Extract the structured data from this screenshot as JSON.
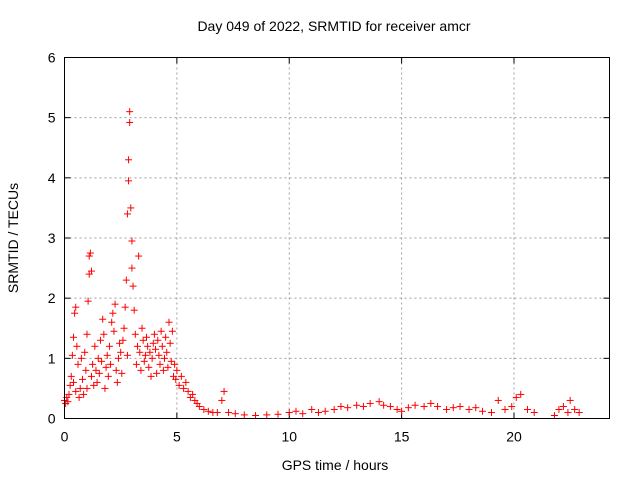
{
  "chart_data": {
    "type": "scatter",
    "title": "Day 049 of 2022, SRMTID for receiver amcr",
    "xlabel": "GPS time / hours",
    "ylabel": "SRMTID / TECUs",
    "xlim": [
      0,
      24.25
    ],
    "ylim": [
      0,
      6
    ],
    "xticks": [
      0,
      5,
      10,
      15,
      20
    ],
    "yticks": [
      0,
      1,
      2,
      3,
      4,
      5,
      6
    ],
    "grid": true,
    "marker": "+",
    "color": "#ff0000",
    "series": [
      {
        "name": "SRMTID",
        "points": [
          [
            0.0,
            0.3
          ],
          [
            0.05,
            0.25
          ],
          [
            0.1,
            0.35
          ],
          [
            0.15,
            0.28
          ],
          [
            0.2,
            0.4
          ],
          [
            0.25,
            0.55
          ],
          [
            0.3,
            0.7
          ],
          [
            0.35,
            1.05
          ],
          [
            0.4,
            0.6
          ],
          [
            0.4,
            1.35
          ],
          [
            0.45,
            1.75
          ],
          [
            0.5,
            1.85
          ],
          [
            0.5,
            0.45
          ],
          [
            0.55,
            1.2
          ],
          [
            0.6,
            0.9
          ],
          [
            0.65,
            0.35
          ],
          [
            0.7,
            0.5
          ],
          [
            0.75,
            1.0
          ],
          [
            0.8,
            0.65
          ],
          [
            0.85,
            0.4
          ],
          [
            0.9,
            1.1
          ],
          [
            0.95,
            0.8
          ],
          [
            1.0,
            1.4
          ],
          [
            1.0,
            0.5
          ],
          [
            1.05,
            1.95
          ],
          [
            1.1,
            2.4
          ],
          [
            1.1,
            2.7
          ],
          [
            1.15,
            2.75
          ],
          [
            1.2,
            2.45
          ],
          [
            1.2,
            0.7
          ],
          [
            1.25,
            0.9
          ],
          [
            1.3,
            0.55
          ],
          [
            1.35,
            1.2
          ],
          [
            1.4,
            0.8
          ],
          [
            1.45,
            0.6
          ],
          [
            1.5,
            1.0
          ],
          [
            1.55,
            0.75
          ],
          [
            1.6,
            1.3
          ],
          [
            1.65,
            0.95
          ],
          [
            1.7,
            1.65
          ],
          [
            1.75,
            1.4
          ],
          [
            1.8,
            0.5
          ],
          [
            1.85,
            0.85
          ],
          [
            1.9,
            1.05
          ],
          [
            1.95,
            0.7
          ],
          [
            2.0,
            1.2
          ],
          [
            2.05,
            0.9
          ],
          [
            2.1,
            1.6
          ],
          [
            2.15,
            1.75
          ],
          [
            2.2,
            1.45
          ],
          [
            2.25,
            1.9
          ],
          [
            2.3,
            0.8
          ],
          [
            2.35,
            0.6
          ],
          [
            2.4,
            1.0
          ],
          [
            2.45,
            1.25
          ],
          [
            2.5,
            1.1
          ],
          [
            2.55,
            0.75
          ],
          [
            2.6,
            1.3
          ],
          [
            2.65,
            1.5
          ],
          [
            2.7,
            1.85
          ],
          [
            2.75,
            2.3
          ],
          [
            2.8,
            3.4
          ],
          [
            2.8,
            1.05
          ],
          [
            2.85,
            3.95
          ],
          [
            2.85,
            4.3
          ],
          [
            2.9,
            5.1
          ],
          [
            2.9,
            4.92
          ],
          [
            2.95,
            3.5
          ],
          [
            3.0,
            2.95
          ],
          [
            3.0,
            2.5
          ],
          [
            3.05,
            2.2
          ],
          [
            3.1,
            1.8
          ],
          [
            3.15,
            1.4
          ],
          [
            3.2,
            0.9
          ],
          [
            3.25,
            1.2
          ],
          [
            3.3,
            2.7
          ],
          [
            3.35,
            1.1
          ],
          [
            3.4,
            0.8
          ],
          [
            3.45,
            1.5
          ],
          [
            3.5,
            1.3
          ],
          [
            3.55,
            0.95
          ],
          [
            3.6,
            1.05
          ],
          [
            3.65,
            1.35
          ],
          [
            3.7,
            1.2
          ],
          [
            3.75,
            0.85
          ],
          [
            3.8,
            1.1
          ],
          [
            3.85,
            0.7
          ],
          [
            3.9,
            1.0
          ],
          [
            3.95,
            1.25
          ],
          [
            4.0,
            1.4
          ],
          [
            4.05,
            1.15
          ],
          [
            4.1,
            0.75
          ],
          [
            4.15,
            1.3
          ],
          [
            4.2,
            1.05
          ],
          [
            4.25,
            0.9
          ],
          [
            4.3,
            1.45
          ],
          [
            4.35,
            1.2
          ],
          [
            4.4,
            0.8
          ],
          [
            4.45,
            1.0
          ],
          [
            4.5,
            1.35
          ],
          [
            4.55,
            1.1
          ],
          [
            4.6,
            0.85
          ],
          [
            4.65,
            1.6
          ],
          [
            4.7,
            1.25
          ],
          [
            4.75,
            0.95
          ],
          [
            4.8,
            1.45
          ],
          [
            4.85,
            0.7
          ],
          [
            4.9,
            0.9
          ],
          [
            4.95,
            0.65
          ],
          [
            5.0,
            0.8
          ],
          [
            5.1,
            0.55
          ],
          [
            5.2,
            0.7
          ],
          [
            5.3,
            0.5
          ],
          [
            5.4,
            0.6
          ],
          [
            5.5,
            0.45
          ],
          [
            5.6,
            0.35
          ],
          [
            5.7,
            0.4
          ],
          [
            5.8,
            0.3
          ],
          [
            5.9,
            0.25
          ],
          [
            6.0,
            0.2
          ],
          [
            6.2,
            0.15
          ],
          [
            6.4,
            0.12
          ],
          [
            6.6,
            0.1
          ],
          [
            6.8,
            0.1
          ],
          [
            7.0,
            0.3
          ],
          [
            7.1,
            0.45
          ],
          [
            7.3,
            0.1
          ],
          [
            7.6,
            0.08
          ],
          [
            8.0,
            0.06
          ],
          [
            8.5,
            0.05
          ],
          [
            9.0,
            0.06
          ],
          [
            9.5,
            0.07
          ],
          [
            10.0,
            0.1
          ],
          [
            10.3,
            0.12
          ],
          [
            10.6,
            0.08
          ],
          [
            11.0,
            0.15
          ],
          [
            11.3,
            0.1
          ],
          [
            11.6,
            0.12
          ],
          [
            12.0,
            0.15
          ],
          [
            12.3,
            0.2
          ],
          [
            12.6,
            0.18
          ],
          [
            13.0,
            0.22
          ],
          [
            13.3,
            0.2
          ],
          [
            13.6,
            0.25
          ],
          [
            14.0,
            0.28
          ],
          [
            14.2,
            0.22
          ],
          [
            14.5,
            0.2
          ],
          [
            14.8,
            0.15
          ],
          [
            15.0,
            0.12
          ],
          [
            15.3,
            0.18
          ],
          [
            15.6,
            0.22
          ],
          [
            16.0,
            0.2
          ],
          [
            16.3,
            0.25
          ],
          [
            16.6,
            0.2
          ],
          [
            17.0,
            0.15
          ],
          [
            17.3,
            0.18
          ],
          [
            17.6,
            0.2
          ],
          [
            18.0,
            0.15
          ],
          [
            18.3,
            0.18
          ],
          [
            18.6,
            0.12
          ],
          [
            19.0,
            0.1
          ],
          [
            19.3,
            0.3
          ],
          [
            19.6,
            0.15
          ],
          [
            19.9,
            0.2
          ],
          [
            20.1,
            0.35
          ],
          [
            20.3,
            0.4
          ],
          [
            20.6,
            0.15
          ],
          [
            20.9,
            0.1
          ],
          [
            21.8,
            0.05
          ],
          [
            22.0,
            0.15
          ],
          [
            22.2,
            0.2
          ],
          [
            22.4,
            0.1
          ],
          [
            22.5,
            0.3
          ],
          [
            22.7,
            0.15
          ],
          [
            22.9,
            0.1
          ]
        ]
      }
    ]
  }
}
